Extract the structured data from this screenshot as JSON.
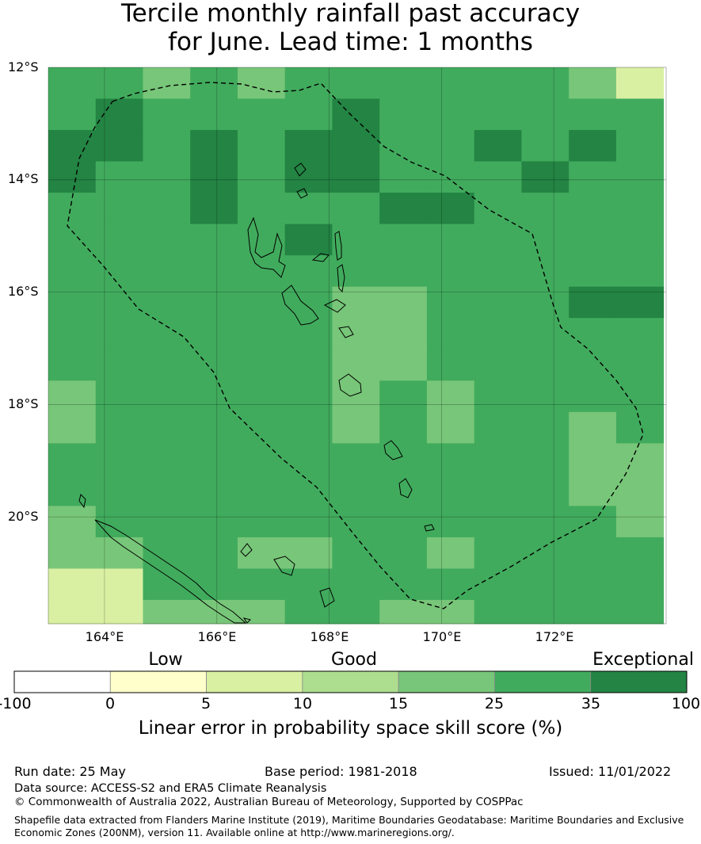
{
  "title": {
    "line1": "Tercile monthly rainfall past accuracy",
    "line2": "for June. Lead time: 1 months"
  },
  "map": {
    "lat_labels": [
      "12°S",
      "14°S",
      "16°S",
      "18°S",
      "20°S"
    ],
    "lon_labels": [
      "164°E",
      "166°E",
      "168°E",
      "170°E",
      "172°E"
    ],
    "extent": {
      "lon_min": 163.0,
      "lon_max": 174.0,
      "lat_min": -21.9,
      "lat_max": -12.0
    },
    "skill_grid": {
      "lon_start": 163.0,
      "lat_start": -12.0,
      "d_lon": 0.8425,
      "d_lat": 0.5575,
      "rows": [
        [
          25,
          25,
          15,
          25,
          15,
          25,
          25,
          25,
          25,
          25,
          25,
          15,
          5
        ],
        [
          25,
          35,
          25,
          25,
          25,
          25,
          35,
          25,
          25,
          25,
          25,
          25,
          25
        ],
        [
          35,
          35,
          25,
          35,
          25,
          35,
          35,
          25,
          25,
          35,
          25,
          35,
          25
        ],
        [
          35,
          25,
          25,
          35,
          25,
          35,
          35,
          25,
          25,
          25,
          35,
          25,
          25
        ],
        [
          25,
          25,
          25,
          35,
          25,
          25,
          25,
          35,
          35,
          25,
          25,
          25,
          25
        ],
        [
          25,
          25,
          25,
          25,
          25,
          35,
          25,
          25,
          25,
          25,
          25,
          25,
          25
        ],
        [
          25,
          25,
          25,
          25,
          25,
          25,
          25,
          25,
          25,
          25,
          25,
          25,
          25
        ],
        [
          25,
          25,
          25,
          25,
          25,
          25,
          15,
          15,
          25,
          25,
          25,
          35,
          35
        ],
        [
          25,
          25,
          25,
          25,
          25,
          25,
          15,
          15,
          25,
          25,
          25,
          25,
          25
        ],
        [
          25,
          25,
          25,
          25,
          25,
          25,
          15,
          15,
          25,
          25,
          25,
          25,
          25
        ],
        [
          15,
          25,
          25,
          25,
          25,
          25,
          15,
          25,
          15,
          25,
          25,
          25,
          25
        ],
        [
          15,
          25,
          25,
          25,
          25,
          25,
          15,
          25,
          15,
          25,
          25,
          15,
          25
        ],
        [
          25,
          25,
          25,
          25,
          25,
          25,
          25,
          25,
          25,
          25,
          25,
          15,
          15
        ],
        [
          25,
          25,
          25,
          25,
          25,
          25,
          25,
          25,
          25,
          25,
          25,
          15,
          15
        ],
        [
          15,
          25,
          25,
          25,
          25,
          25,
          25,
          25,
          25,
          25,
          25,
          25,
          15
        ],
        [
          15,
          15,
          25,
          25,
          15,
          15,
          25,
          25,
          15,
          25,
          25,
          25,
          25
        ],
        [
          5,
          5,
          25,
          25,
          25,
          25,
          25,
          25,
          25,
          25,
          25,
          25,
          25
        ],
        [
          5,
          5,
          15,
          15,
          15,
          25,
          25,
          15,
          15,
          25,
          25,
          25,
          25
        ],
        [
          5,
          5,
          5,
          5,
          5,
          15,
          25,
          15,
          15,
          15,
          25,
          15,
          25
        ],
        [
          0,
          5,
          5,
          5,
          5,
          15,
          15,
          15,
          15,
          15,
          25,
          15,
          25
        ],
        [
          5,
          0,
          0,
          5,
          5,
          15,
          15,
          25,
          15,
          25,
          15,
          15,
          25
        ],
        [
          5,
          0,
          0,
          5,
          5,
          5,
          15,
          25,
          15,
          25,
          15,
          15,
          25
        ],
        [
          5,
          5,
          5,
          15,
          5,
          15,
          5,
          15,
          15,
          25,
          15,
          5,
          15
        ],
        [
          5,
          5,
          5,
          5,
          5,
          5,
          5,
          15,
          15,
          25,
          15,
          5,
          15
        ],
        [
          5,
          0,
          5,
          5,
          0,
          5,
          15,
          15,
          15,
          25,
          25,
          15,
          5
        ],
        [
          5,
          5,
          0,
          5,
          0,
          5,
          15,
          15,
          15,
          25,
          25,
          15,
          15
        ]
      ]
    }
  },
  "colorbar": {
    "categories": [
      {
        "label": "Low",
        "value": 0
      },
      {
        "label": "Good",
        "value": 15
      },
      {
        "label": "Exceptional",
        "value": 35
      }
    ],
    "bins": [
      {
        "from": -100,
        "to": 0,
        "color": "#ffffff"
      },
      {
        "from": 0,
        "to": 5,
        "color": "#ffffcc"
      },
      {
        "from": 5,
        "to": 10,
        "color": "#d9f0a3"
      },
      {
        "from": 10,
        "to": 15,
        "color": "#addd8e"
      },
      {
        "from": 15,
        "to": 25,
        "color": "#78c679"
      },
      {
        "from": 25,
        "to": 35,
        "color": "#41ab5d"
      },
      {
        "from": 35,
        "to": 100,
        "color": "#238443"
      }
    ],
    "ticks": [
      "-100",
      "0",
      "5",
      "10",
      "15",
      "25",
      "35",
      "100"
    ],
    "label": "Linear error in probability space skill score (%)"
  },
  "footer": {
    "run_date": "Run date: 25 May",
    "base_period": "Base period: 1981-2018",
    "issued": "Issued: 11/01/2022",
    "data_source": "Data source: ACCESS-S2 and ERA5 Climate Reanalysis",
    "copyright": "© Commonwealth of Australia 2022, Australian Bureau of Meteorology, Supported by COSPPac",
    "shapefile_line1": "Shapefile data extracted from Flanders Marine Institute (2019), Maritime Boundaries Geodatabase: Maritime Boundaries and Exclusive",
    "shapefile_line2": "Economic Zones (200NM), version 11. Available online at http://www.marineregions.org/."
  }
}
